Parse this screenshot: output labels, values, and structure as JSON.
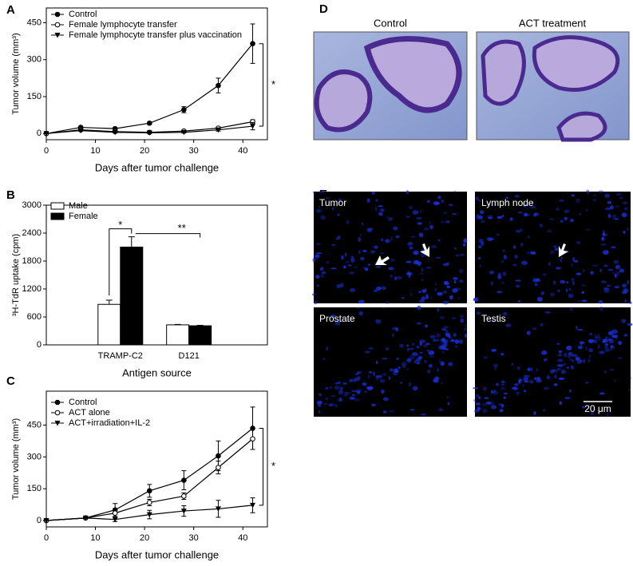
{
  "chart_data": [
    {
      "type": "line",
      "panel": "A",
      "xlabel": "Days after tumor challenge",
      "ylabel": "Tumor volume (mm³)",
      "x": [
        0,
        7,
        14,
        21,
        28,
        35,
        42
      ],
      "xlim": [
        0,
        45
      ],
      "xticks": [
        0,
        10,
        20,
        30,
        40
      ],
      "ylim": [
        -25,
        510
      ],
      "yticks": [
        0,
        150,
        300,
        450
      ],
      "legend": "upper left",
      "series": [
        {
          "name": "Control",
          "color": "#000000",
          "marker": "filled-circle",
          "values": [
            0,
            25,
            20,
            42,
            97,
            195,
            365
          ],
          "errors": [
            0,
            5,
            5,
            5,
            12,
            30,
            80
          ]
        },
        {
          "name": "Female lymphocyte transfer",
          "color": "#000000",
          "marker": "open-circle",
          "values": [
            0,
            15,
            8,
            5,
            10,
            22,
            48
          ],
          "errors": [
            0,
            3,
            3,
            2,
            3,
            4,
            8
          ]
        },
        {
          "name": "Female lymphocyte transfer plus vaccination",
          "color": "#000000",
          "marker": "triangle-down",
          "values": [
            0,
            12,
            5,
            3,
            5,
            15,
            30
          ],
          "errors": [
            0,
            2,
            2,
            2,
            3,
            5,
            15
          ]
        }
      ],
      "annotations": [
        "*"
      ]
    },
    {
      "type": "bar",
      "panel": "B",
      "xlabel": "Antigen source",
      "ylabel": "³H-TdR uptake (cpm)",
      "categories": [
        "TRAMP-C2",
        "D121"
      ],
      "ylim": [
        0,
        3000
      ],
      "yticks": [
        0,
        600,
        1200,
        1800,
        2400,
        3000
      ],
      "legend": "upper left",
      "series": [
        {
          "name": "Male",
          "color": "#ffffff",
          "values": [
            870,
            430
          ],
          "errors": [
            90,
            10
          ]
        },
        {
          "name": "Female",
          "color": "#000000",
          "values": [
            2100,
            410
          ],
          "errors": [
            220,
            10
          ]
        }
      ],
      "annotations": [
        "*",
        "**"
      ]
    },
    {
      "type": "line",
      "panel": "C",
      "xlabel": "Days after tumor challenge",
      "ylabel": "Tumor volume (mm³)",
      "x": [
        0,
        8,
        14,
        21,
        28,
        35,
        42
      ],
      "xlim": [
        0,
        45
      ],
      "xticks": [
        0,
        10,
        20,
        30,
        40
      ],
      "ylim": [
        -30,
        610
      ],
      "yticks": [
        0,
        150,
        300,
        450
      ],
      "legend": "upper left",
      "series": [
        {
          "name": "Control",
          "color": "#000000",
          "marker": "filled-circle",
          "values": [
            0,
            12,
            50,
            140,
            190,
            305,
            435
          ],
          "errors": [
            0,
            3,
            30,
            30,
            45,
            70,
            100
          ]
        },
        {
          "name": "ACT alone",
          "color": "#000000",
          "marker": "open-circle",
          "values": [
            0,
            12,
            35,
            85,
            115,
            250,
            385
          ],
          "errors": [
            0,
            3,
            20,
            15,
            15,
            30,
            50
          ]
        },
        {
          "name": "ACT+irradiation+IL-2",
          "color": "#000000",
          "marker": "triangle-down",
          "values": [
            0,
            12,
            5,
            28,
            45,
            55,
            72
          ],
          "errors": [
            0,
            3,
            10,
            20,
            25,
            40,
            35
          ]
        }
      ],
      "annotations": [
        "*"
      ]
    }
  ],
  "image_panels": [
    {
      "panel": "D",
      "titles": [
        "Control",
        "ACT treatment"
      ]
    },
    {
      "panel": "E",
      "labels": [
        "Tumor",
        "Lymph node",
        "Prostate",
        "Testis"
      ],
      "scale_bar": "20 μm"
    }
  ]
}
